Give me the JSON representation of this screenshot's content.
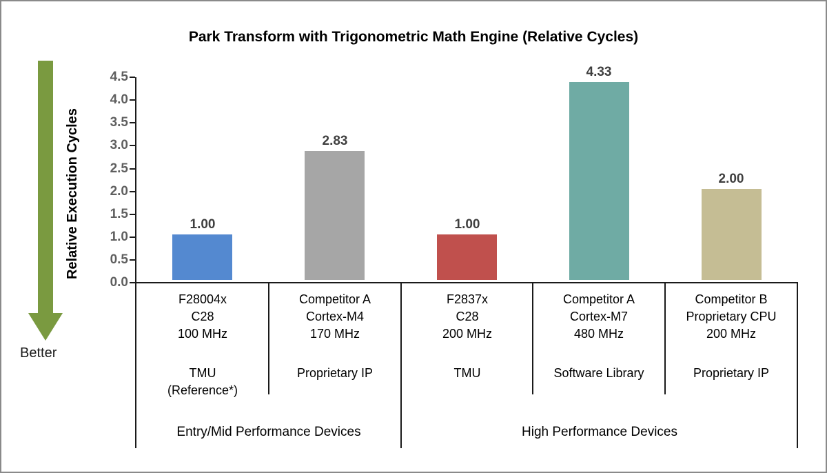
{
  "title": "Park Transform with Trigonometric Math Engine (Relative Cycles)",
  "better_label": "Better",
  "colors": {
    "arrow_green": "#7A9A40",
    "axis_line": "#1a1a1a",
    "tick_label_gray": "#5f5f5f",
    "value_label_gray": "#3f3f3f"
  },
  "chart_data": {
    "type": "bar",
    "title": "Park Transform with Trigonometric Math Engine (Relative Cycles)",
    "xlabel": "",
    "ylabel": "Relative Execution Cycles",
    "ylim": [
      0.0,
      4.5
    ],
    "ytick_step": 0.5,
    "grid": false,
    "legend": "none",
    "yticks": [
      "4.5",
      "4.0",
      "3.5",
      "3.0",
      "2.5",
      "2.0",
      "1.5",
      "1.0",
      "0.5",
      "0.0"
    ],
    "better_direction": "down",
    "categories": [
      {
        "device": "F28004x",
        "cpu": "C28",
        "freq": "100 MHz",
        "method": "TMU",
        "method_note": "(Reference*)",
        "value": 1.0,
        "value_label": "1.00",
        "color": "#5489D0",
        "group": "Entry/Mid Performance Devices"
      },
      {
        "device": "Competitor A",
        "cpu": "Cortex-M4",
        "freq": "170 MHz",
        "method": "Proprietary IP",
        "method_note": "",
        "value": 2.83,
        "value_label": "2.83",
        "color": "#A6A6A6",
        "group": "Entry/Mid Performance Devices"
      },
      {
        "device": "F2837x",
        "cpu": "C28",
        "freq": "200 MHz",
        "method": "TMU",
        "method_note": "",
        "value": 1.0,
        "value_label": "1.00",
        "color": "#C0504D",
        "group": "High Performance Devices"
      },
      {
        "device": "Competitor A",
        "cpu": "Cortex-M7",
        "freq": "480 MHz",
        "method": "Software Library",
        "method_note": "",
        "value": 4.33,
        "value_label": "4.33",
        "color": "#6FABA4",
        "group": "High Performance Devices"
      },
      {
        "device": "Competitor B",
        "cpu": "Proprietary CPU",
        "freq": "200 MHz",
        "method": "Proprietary IP",
        "method_note": "",
        "value": 2.0,
        "value_label": "2.00",
        "color": "#C5BD94",
        "group": "High Performance Devices"
      }
    ],
    "groups": [
      {
        "label": "Entry/Mid Performance Devices",
        "span": 2
      },
      {
        "label": "High Performance Devices",
        "span": 3
      }
    ]
  }
}
